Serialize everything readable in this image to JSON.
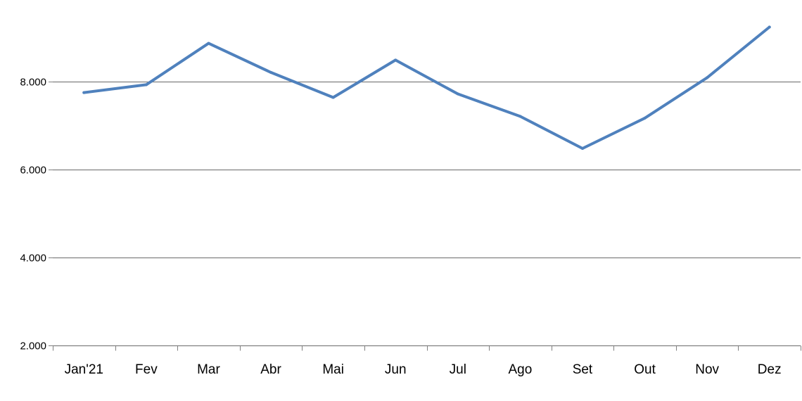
{
  "chart_data": {
    "type": "line",
    "title": "",
    "xlabel": "",
    "ylabel": "",
    "categories": [
      "Jan'21",
      "Fev",
      "Mar",
      "Abr",
      "Mai",
      "Jun",
      "Jul",
      "Ago",
      "Set",
      "Out",
      "Nov",
      "Dez"
    ],
    "series": [
      {
        "values": [
          7750,
          7930,
          8870,
          8210,
          7640,
          8490,
          7720,
          7210,
          6480,
          7170,
          8090,
          9240
        ],
        "color": "#4F81BD"
      }
    ],
    "ylim": [
      2000,
      9500
    ],
    "yticks": [
      2000,
      4000,
      6000,
      8000
    ],
    "ytick_labels": [
      "2.000",
      "4.000",
      "6.000",
      "8.000"
    ],
    "grid": true,
    "gridline_color": "#808080",
    "axis_color": "#808080",
    "legend": "none"
  }
}
